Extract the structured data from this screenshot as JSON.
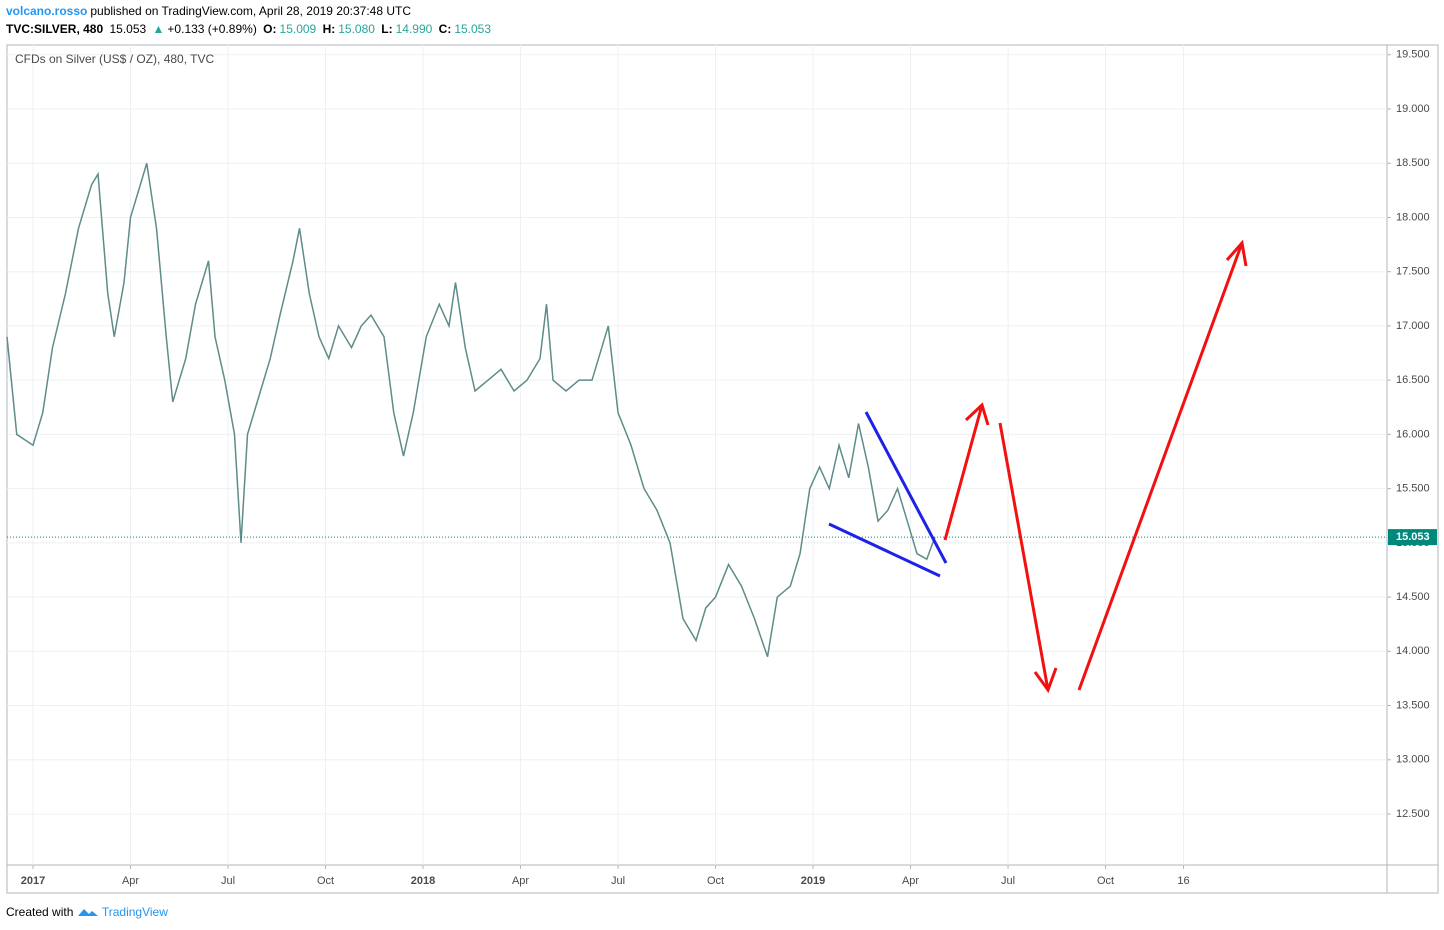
{
  "header": {
    "author": "volcano.rosso",
    "published": "published on TradingView.com, April 28, 2019 20:37:48 UTC",
    "symbol": "TVC:SILVER, 480",
    "last": "15.053",
    "arrow": "▲",
    "change": "+0.133 (+0.89%)",
    "o_label": "O:",
    "o": "15.009",
    "h_label": "H:",
    "h": "15.080",
    "l_label": "L:",
    "l": "14.990",
    "c_label": "C:",
    "c": "15.053"
  },
  "footer": {
    "created": "Created with",
    "brand": "TradingView"
  },
  "chart_data": {
    "type": "line",
    "legend": "CFDs on Silver (US$ / OZ), 480, TVC",
    "color": "#5e8c88",
    "x": [
      -0.8,
      -0.5,
      0,
      0.3,
      0.6,
      1,
      1.4,
      1.8,
      2,
      2.3,
      2.5,
      2.8,
      3,
      3.3,
      3.5,
      3.8,
      4.1,
      4.3,
      4.7,
      5,
      5.4,
      5.6,
      5.9,
      6.2,
      6.4,
      6.6,
      7,
      7.3,
      7.6,
      8,
      8.2,
      8.5,
      8.8,
      9.1,
      9.4,
      9.8,
      10.1,
      10.4,
      10.8,
      11.1,
      11.4,
      11.7,
      12.1,
      12.5,
      12.8,
      13,
      13.3,
      13.6,
      14,
      14.4,
      14.8,
      15.2,
      15.6,
      15.8,
      16,
      16.4,
      16.8,
      17.2,
      17.7,
      18,
      18.4,
      18.8,
      19.2,
      19.6,
      20,
      20.4,
      20.7,
      21,
      21.4,
      21.8,
      22.2,
      22.6,
      22.9,
      23.3,
      23.6,
      23.9,
      24.2,
      24.5,
      24.8,
      25.1,
      25.4,
      25.7,
      26,
      26.3,
      26.6,
      26.9,
      27.2,
      27.5,
      27.75
    ],
    "values": [
      16.9,
      16,
      15.9,
      16.2,
      16.8,
      17.3,
      17.9,
      18.3,
      18.4,
      17.3,
      16.9,
      17.4,
      18,
      18.3,
      18.5,
      17.9,
      16.9,
      16.3,
      16.7,
      17.2,
      17.6,
      16.9,
      16.5,
      16,
      15,
      16,
      16.4,
      16.7,
      17.1,
      17.6,
      17.9,
      17.3,
      16.9,
      16.7,
      17,
      16.8,
      17,
      17.1,
      16.9,
      16.2,
      15.8,
      16.2,
      16.9,
      17.2,
      17,
      17.4,
      16.8,
      16.4,
      16.5,
      16.6,
      16.4,
      16.5,
      16.7,
      17.2,
      16.5,
      16.4,
      16.5,
      16.5,
      17,
      16.2,
      15.9,
      15.5,
      15.3,
      15,
      14.3,
      14.1,
      14.4,
      14.5,
      14.8,
      14.6,
      14.3,
      13.95,
      14.5,
      14.6,
      14.9,
      15.5,
      15.7,
      15.5,
      15.9,
      15.6,
      16.1,
      15.7,
      15.2,
      15.3,
      15.5,
      15.2,
      14.9,
      14.85,
      15.053
    ],
    "last_price": {
      "value": 15.053,
      "label": "15.053"
    },
    "xlim": [
      -0.8,
      41.66
    ],
    "ylim": [
      12.03,
      19.59
    ],
    "xticks": [
      {
        "value": 0,
        "label": "2017"
      },
      {
        "value": 3,
        "label": "Apr"
      },
      {
        "value": 6,
        "label": "Jul"
      },
      {
        "value": 9,
        "label": "Oct"
      },
      {
        "value": 12,
        "label": "2018"
      },
      {
        "value": 15,
        "label": "Apr"
      },
      {
        "value": 18,
        "label": "Jul"
      },
      {
        "value": 21,
        "label": "Oct"
      },
      {
        "value": 24,
        "label": "2019"
      },
      {
        "value": 27,
        "label": "Apr"
      },
      {
        "value": 30,
        "label": "Jul"
      },
      {
        "value": 33,
        "label": "Oct"
      },
      {
        "value": 35.4,
        "label": "16"
      }
    ],
    "yticks": [
      {
        "value": 12.5,
        "label": "12.500"
      },
      {
        "value": 13,
        "label": "13.000"
      },
      {
        "value": 13.5,
        "label": "13.500"
      },
      {
        "value": 14,
        "label": "14.000"
      },
      {
        "value": 14.5,
        "label": "14.500"
      },
      {
        "value": 15,
        "label": "15.000"
      },
      {
        "value": 15.5,
        "label": "15.500"
      },
      {
        "value": 16,
        "label": "16.000"
      },
      {
        "value": 16.5,
        "label": "16.500"
      },
      {
        "value": 17,
        "label": "17.000"
      },
      {
        "value": 17.5,
        "label": "17.500"
      },
      {
        "value": 18,
        "label": "18.000"
      },
      {
        "value": 18.5,
        "label": "18.500"
      },
      {
        "value": 19,
        "label": "19.000"
      },
      {
        "value": 19.5,
        "label": "19.500"
      }
    ],
    "grid": true
  }
}
